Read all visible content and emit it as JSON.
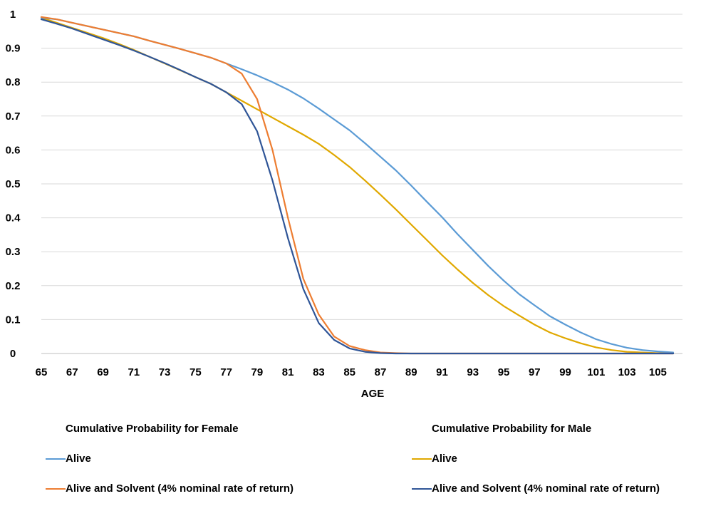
{
  "chart_data": {
    "type": "line",
    "title": "",
    "xlabel": "AGE",
    "ylabel": "",
    "ylim": [
      0,
      1
    ],
    "yticks": [
      "0",
      "0.1",
      "0.2",
      "0.3",
      "0.4",
      "0.5",
      "0.6",
      "0.7",
      "0.8",
      "0.9",
      "1"
    ],
    "xticks": [
      "65",
      "67",
      "69",
      "71",
      "73",
      "75",
      "77",
      "79",
      "81",
      "83",
      "85",
      "87",
      "89",
      "91",
      "93",
      "95",
      "97",
      "99",
      "101",
      "103",
      "105"
    ],
    "x": [
      65,
      66,
      67,
      68,
      69,
      70,
      71,
      72,
      73,
      74,
      75,
      76,
      77,
      78,
      79,
      80,
      81,
      82,
      83,
      84,
      85,
      86,
      87,
      88,
      89,
      90,
      91,
      92,
      93,
      94,
      95,
      96,
      97,
      98,
      99,
      100,
      101,
      102,
      103,
      104,
      105,
      106
    ],
    "grid": true,
    "legend_groups": [
      {
        "heading": "Cumulative Probability for Female",
        "placement": "bottom-left",
        "entries": [
          {
            "label": "Alive",
            "series_index": 0
          },
          {
            "label": "Alive and Solvent (4% nominal rate of return)",
            "series_index": 1
          }
        ]
      },
      {
        "heading": "Cumulative Probability for Male",
        "placement": "bottom-right",
        "entries": [
          {
            "label": "Alive",
            "series_index": 2
          },
          {
            "label": "Alive and Solvent (4% nominal rate of return)",
            "series_index": 3
          }
        ]
      }
    ],
    "series": [
      {
        "color": "#5B9BD5",
        "values": [
          0.99,
          0.985,
          0.975,
          0.965,
          0.955,
          0.945,
          0.935,
          0.922,
          0.91,
          0.898,
          0.885,
          0.872,
          0.855,
          0.838,
          0.82,
          0.8,
          0.778,
          0.752,
          0.722,
          0.69,
          0.658,
          0.62,
          0.58,
          0.54,
          0.495,
          0.448,
          0.402,
          0.352,
          0.305,
          0.258,
          0.215,
          0.175,
          0.142,
          0.11,
          0.085,
          0.062,
          0.042,
          0.028,
          0.017,
          0.01,
          0.006,
          0.003
        ]
      },
      {
        "color": "#ED7D31",
        "values": [
          0.992,
          0.985,
          0.975,
          0.965,
          0.955,
          0.945,
          0.935,
          0.922,
          0.91,
          0.898,
          0.885,
          0.872,
          0.855,
          0.825,
          0.75,
          0.6,
          0.4,
          0.22,
          0.115,
          0.05,
          0.022,
          0.01,
          0.003,
          0.001,
          0,
          0,
          0,
          0,
          0,
          0,
          0,
          0,
          0,
          0,
          0,
          0,
          0,
          0,
          0,
          0,
          0,
          0
        ]
      },
      {
        "color": "#E0A800",
        "values": [
          0.99,
          0.975,
          0.96,
          0.945,
          0.93,
          0.913,
          0.895,
          0.875,
          0.855,
          0.835,
          0.815,
          0.795,
          0.77,
          0.745,
          0.72,
          0.695,
          0.67,
          0.645,
          0.618,
          0.585,
          0.55,
          0.51,
          0.468,
          0.425,
          0.38,
          0.335,
          0.29,
          0.248,
          0.208,
          0.172,
          0.14,
          0.112,
          0.085,
          0.062,
          0.045,
          0.03,
          0.018,
          0.01,
          0.005,
          0.003,
          0.001,
          0.001
        ]
      },
      {
        "color": "#2F5597",
        "values": [
          0.985,
          0.972,
          0.958,
          0.942,
          0.926,
          0.91,
          0.893,
          0.875,
          0.856,
          0.836,
          0.815,
          0.795,
          0.77,
          0.735,
          0.655,
          0.51,
          0.34,
          0.19,
          0.09,
          0.04,
          0.015,
          0.005,
          0.001,
          0,
          0,
          0,
          0,
          0,
          0,
          0,
          0,
          0,
          0,
          0,
          0,
          0,
          0,
          0,
          0,
          0,
          0,
          0
        ]
      }
    ]
  }
}
